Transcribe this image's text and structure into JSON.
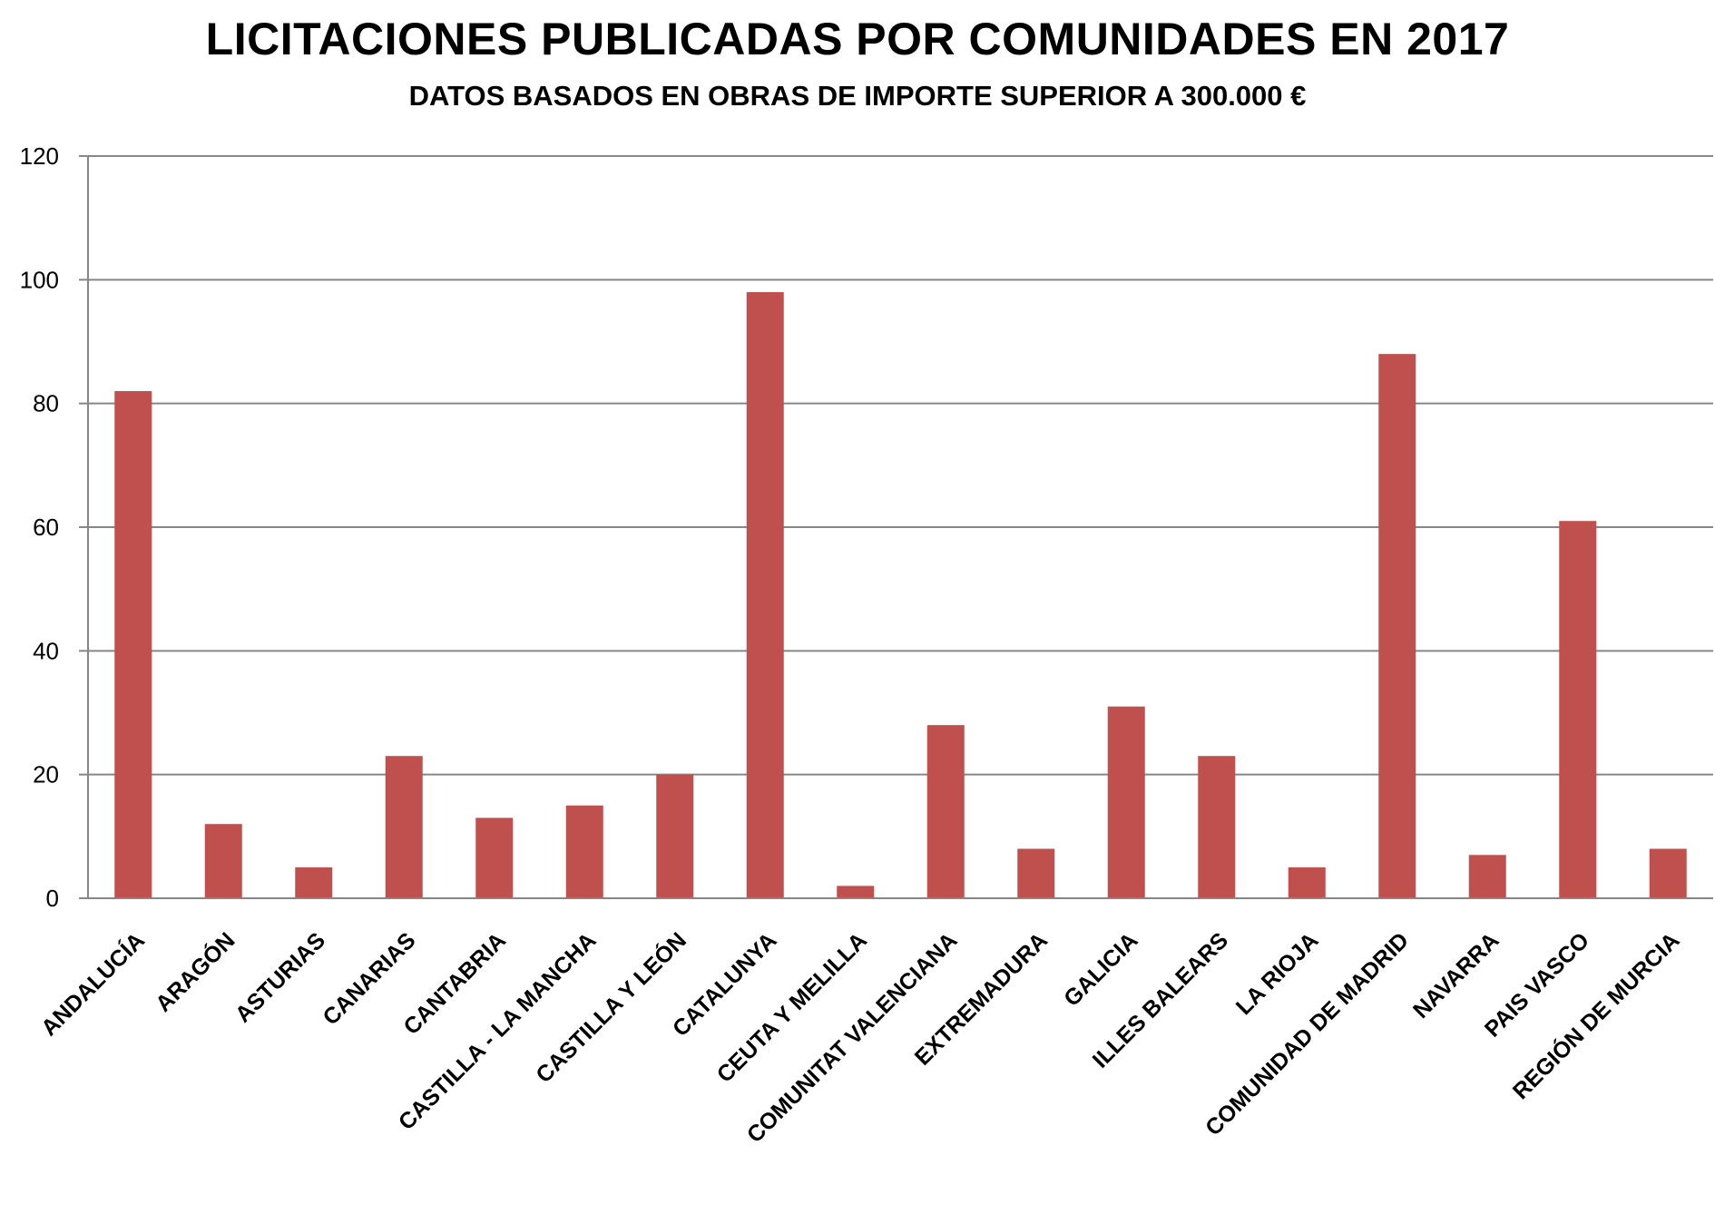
{
  "chart_data": {
    "type": "bar",
    "title": "LICITACIONES PUBLICADAS POR COMUNIDADES EN 2017",
    "subtitle": "DATOS BASADOS EN OBRAS DE IMPORTE SUPERIOR A 300.000 €",
    "categories": [
      "ANDALUCÍA",
      "ARAGÓN",
      "ASTURIAS",
      "CANARIAS",
      "CANTABRIA",
      "CASTILLA - LA MANCHA",
      "CASTILLA Y LEÓN",
      "CATALUNYA",
      "CEUTA Y MELILLA",
      "COMUNITAT VALENCIANA",
      "EXTREMADURA",
      "GALICIA",
      "ILLES BALEARS",
      "LA RIOJA",
      "COMUNIDAD DE MADRID",
      "NAVARRA",
      "PAIS VASCO",
      "REGIÓN DE MURCIA"
    ],
    "values": [
      82,
      12,
      5,
      23,
      13,
      15,
      20,
      98,
      2,
      28,
      8,
      31,
      23,
      5,
      88,
      7,
      61,
      8
    ],
    "xlabel": "",
    "ylabel": "",
    "ylim": [
      0,
      120
    ],
    "yticks": [
      0,
      20,
      40,
      60,
      80,
      100,
      120
    ],
    "grid": true,
    "legend": "none",
    "bar_color": "#C0504D",
    "grid_color": "#868686"
  }
}
